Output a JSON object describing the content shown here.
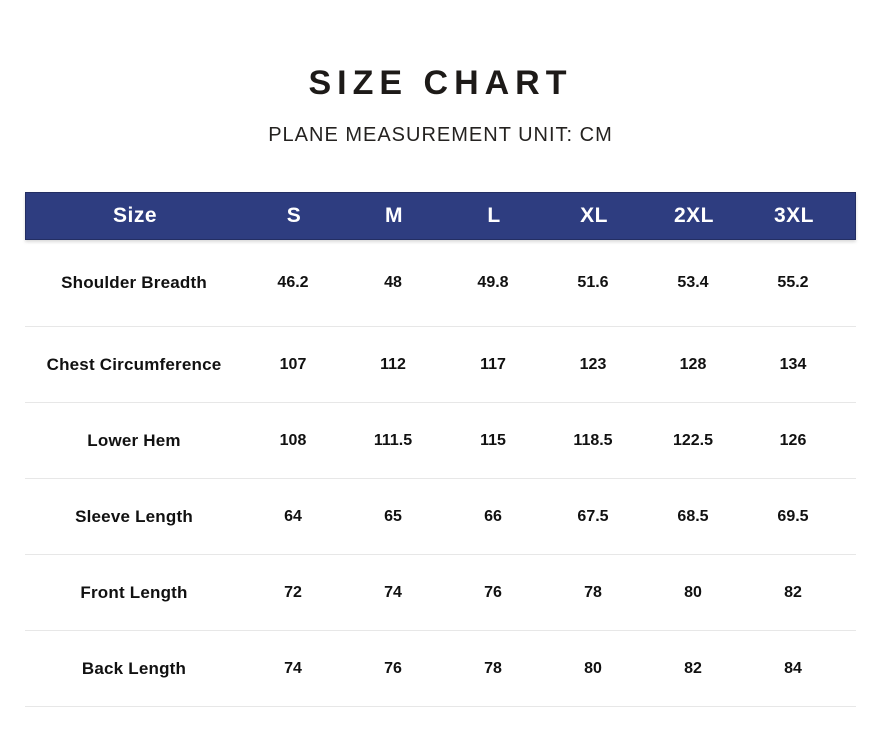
{
  "page": {
    "title": "SIZE CHART",
    "subtitle": "PLANE MEASUREMENT UNIT: CM"
  },
  "chart_data": {
    "type": "table",
    "title": "SIZE CHART",
    "subtitle": "PLANE MEASUREMENT UNIT: CM",
    "measurement_unit": "CM",
    "columns": [
      "Size",
      "S",
      "M",
      "L",
      "XL",
      "2XL",
      "3XL"
    ],
    "rows": [
      {
        "label": "Shoulder Breadth",
        "values": [
          "46.2",
          "48",
          "49.8",
          "51.6",
          "53.4",
          "55.2"
        ]
      },
      {
        "label": "Chest Circumference",
        "values": [
          "107",
          "112",
          "117",
          "123",
          "128",
          "134"
        ]
      },
      {
        "label": "Lower Hem",
        "values": [
          "108",
          "111.5",
          "115",
          "118.5",
          "122.5",
          "126"
        ]
      },
      {
        "label": "Sleeve Length",
        "values": [
          "64",
          "65",
          "66",
          "67.5",
          "68.5",
          "69.5"
        ]
      },
      {
        "label": "Front Length",
        "values": [
          "72",
          "74",
          "76",
          "78",
          "80",
          "82"
        ]
      },
      {
        "label": "Back Length",
        "values": [
          "74",
          "76",
          "78",
          "80",
          "82",
          "84"
        ]
      }
    ],
    "layout": {
      "header_position": "top",
      "grid": "horizontal-dividers-only"
    },
    "colors": {
      "header_background": "#2e3d80",
      "header_border": "#232e63",
      "header_text": "#ffffff",
      "body_text": "#111111",
      "divider": "#e7e7e7",
      "page_background": "#ffffff"
    }
  }
}
